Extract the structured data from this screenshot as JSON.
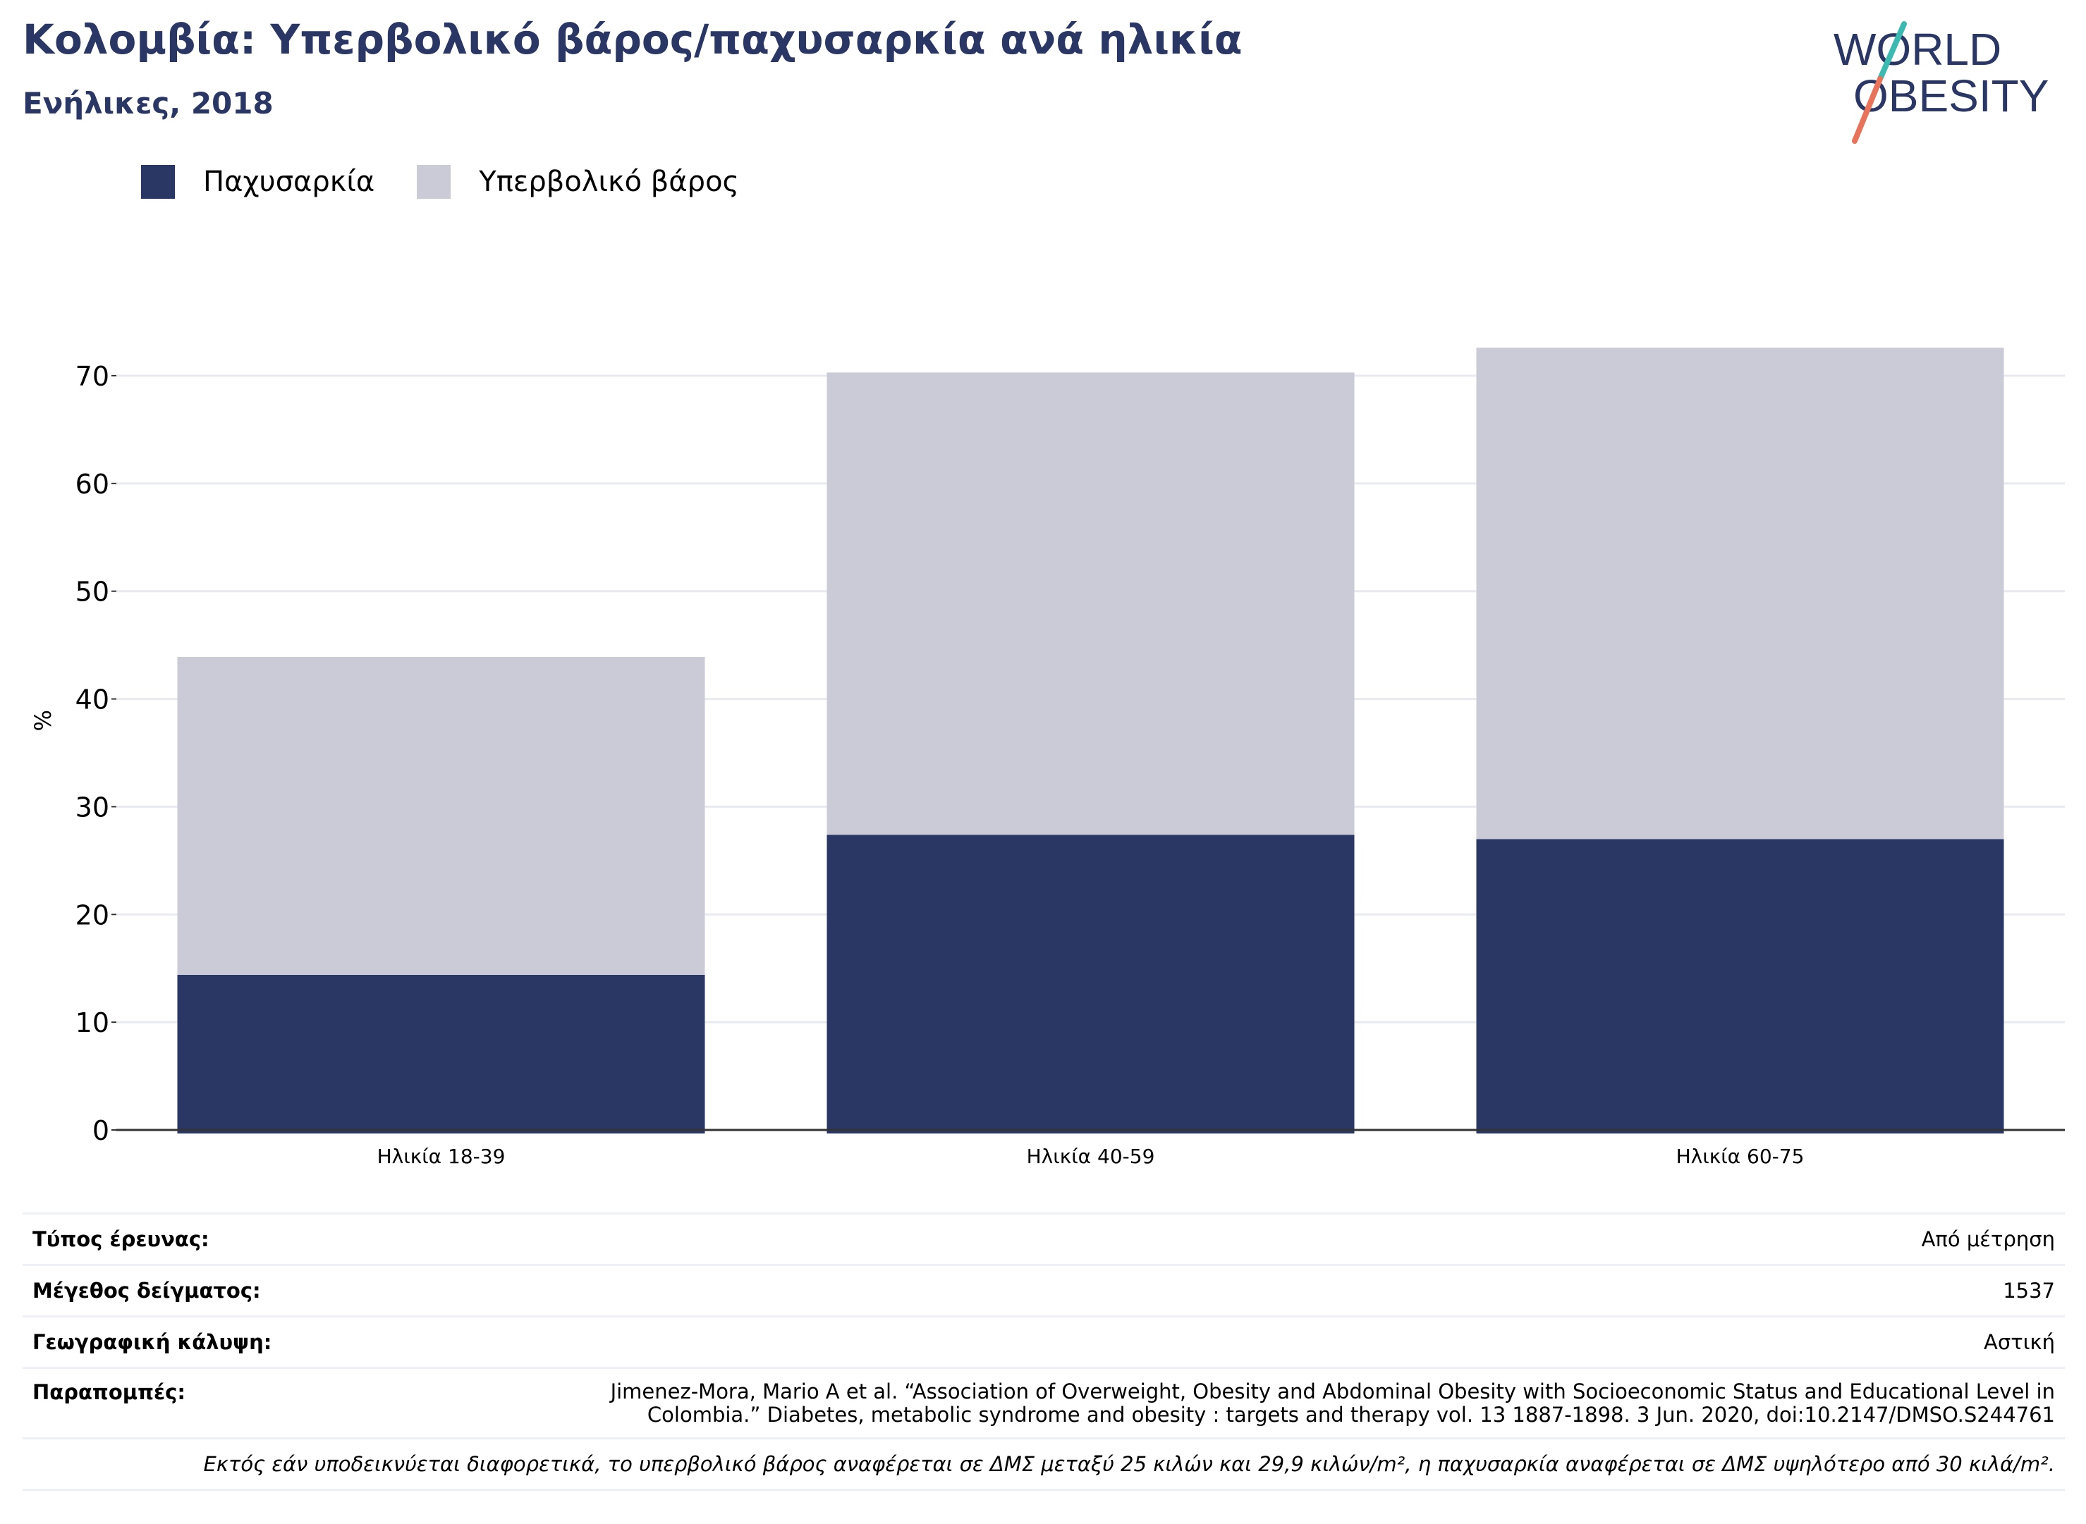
{
  "header": {
    "title": "Κολομβία: Υπερβολικό βάρος/παχυσαρκία ανά ηλικία",
    "subtitle": "Ενήλικες, 2018"
  },
  "logo": {
    "line1": "WORLD",
    "line2": "OBESITY"
  },
  "legend": [
    {
      "label": "Παχυσαρκία",
      "color": "#2a3664"
    },
    {
      "label": "Υπερβολικό βάρος",
      "color": "#cacbd7"
    }
  ],
  "chart_data": {
    "type": "bar",
    "stacked": true,
    "categories": [
      "Ηλικία 18-39",
      "Ηλικία 40-59",
      "Ηλικία 60-75"
    ],
    "series": [
      {
        "name": "Παχυσαρκία",
        "values": [
          14.4,
          27.4,
          27.0
        ],
        "color": "#2a3664"
      },
      {
        "name": "Υπερβολικό βάρος",
        "values": [
          29.5,
          42.9,
          45.6
        ],
        "color": "#cacbd7"
      }
    ],
    "ylabel": "%",
    "ylim": [
      0,
      75
    ],
    "yticks": [
      0,
      10,
      20,
      30,
      40,
      50,
      60,
      70
    ],
    "grid": true,
    "legend_position": "top-left"
  },
  "meta": {
    "survey_type": {
      "label": "Τύπος έρευνας:",
      "value": "Από μέτρηση"
    },
    "sample_size": {
      "label": "Μέγεθος δείγματος:",
      "value": "1537"
    },
    "coverage": {
      "label": "Γεωγραφική κάλυψη:",
      "value": "Αστική"
    },
    "references": {
      "label": "Παραπομπές:",
      "value": "Jimenez-Mora, Mario A et al. “Association of Overweight, Obesity and Abdominal Obesity with Socioeconomic Status and Educational Level in Colombia.” Diabetes, metabolic syndrome and obesity : targets and therapy vol. 13 1887-1898. 3 Jun. 2020, doi:10.2147/DMSO.S244761"
    },
    "note": "Εκτός εάν υποδεικνύεται διαφορετικά, το υπερβολικό βάρος αναφέρεται σε ΔΜΣ μεταξύ 25 κιλών και 29,9 κιλών/m², η παχυσαρκία αναφέρεται σε ΔΜΣ υψηλότερο από 30 κιλά/m²."
  }
}
